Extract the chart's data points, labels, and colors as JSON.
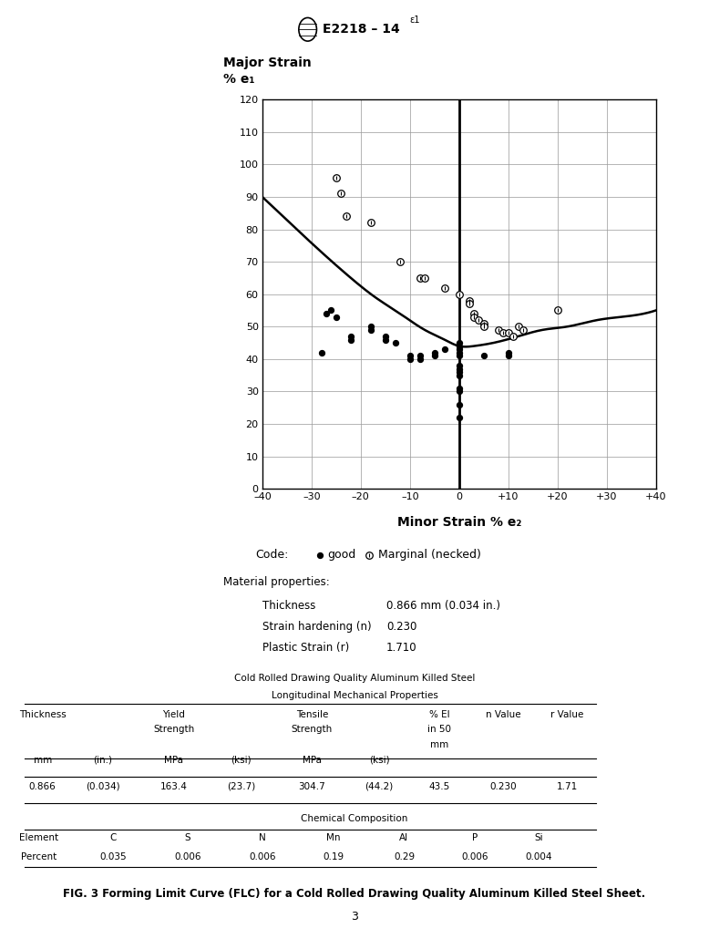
{
  "title_text": "E2218 – 14",
  "title_superscript": "ε1",
  "ylabel_line1": "Major Strain",
  "ylabel_line2": "% e₁",
  "xlabel": "Minor Strain % e₂",
  "xlim": [
    -40,
    40
  ],
  "ylim": [
    0,
    120
  ],
  "xticks": [
    -40,
    -30,
    -20,
    -10,
    0,
    10,
    20,
    30,
    40
  ],
  "xtick_labels": [
    "–40",
    "–30",
    "–20",
    "–10",
    "0",
    "+10",
    "+20",
    "+30",
    "+40"
  ],
  "yticks": [
    0,
    10,
    20,
    30,
    40,
    50,
    60,
    70,
    80,
    90,
    100,
    110,
    120
  ],
  "good_points": [
    [
      -27,
      54
    ],
    [
      -26,
      55
    ],
    [
      -25,
      53
    ],
    [
      -28,
      42
    ],
    [
      -22,
      47
    ],
    [
      -22,
      46
    ],
    [
      -18,
      50
    ],
    [
      -18,
      49
    ],
    [
      -15,
      47
    ],
    [
      -15,
      46
    ],
    [
      -13,
      45
    ],
    [
      -10,
      41
    ],
    [
      -10,
      40
    ],
    [
      -8,
      41
    ],
    [
      -8,
      40
    ],
    [
      -5,
      41
    ],
    [
      -5,
      42
    ],
    [
      -3,
      43
    ],
    [
      0,
      45
    ],
    [
      0,
      44
    ],
    [
      0,
      43
    ],
    [
      0,
      42
    ],
    [
      0,
      41
    ],
    [
      0,
      38
    ],
    [
      0,
      37
    ],
    [
      0,
      36
    ],
    [
      0,
      35
    ],
    [
      0,
      31
    ],
    [
      0,
      30
    ],
    [
      0,
      26
    ],
    [
      0,
      22
    ],
    [
      5,
      41
    ],
    [
      10,
      42
    ],
    [
      10,
      41
    ]
  ],
  "marginal_points": [
    [
      -25,
      96
    ],
    [
      -24,
      91
    ],
    [
      -23,
      84
    ],
    [
      -18,
      82
    ],
    [
      -12,
      70
    ],
    [
      -8,
      65
    ],
    [
      -7,
      65
    ],
    [
      -3,
      62
    ],
    [
      0,
      60
    ],
    [
      2,
      58
    ],
    [
      2,
      57
    ],
    [
      3,
      54
    ],
    [
      3,
      53
    ],
    [
      4,
      52
    ],
    [
      5,
      51
    ],
    [
      5,
      50
    ],
    [
      8,
      49
    ],
    [
      9,
      48
    ],
    [
      10,
      48
    ],
    [
      11,
      47
    ],
    [
      12,
      50
    ],
    [
      13,
      49
    ],
    [
      20,
      55
    ]
  ],
  "flc_curve_x": [
    -40,
    -33,
    -28,
    -22,
    -17,
    -12,
    -7,
    -3,
    0,
    3,
    7,
    12,
    17,
    22,
    28,
    33,
    40
  ],
  "flc_curve_y": [
    90,
    80,
    73,
    65,
    59,
    54,
    49,
    46,
    44,
    44,
    45,
    47,
    49,
    50,
    52,
    53,
    55
  ],
  "code_label": "Code:",
  "good_label": "good",
  "marginal_label": "Marginal (necked)",
  "mat_props_title": "Material properties:",
  "mat_props": [
    [
      "Thickness",
      "0.866 mm (0.034 in.)"
    ],
    [
      "Strain hardening (n)",
      "0.230"
    ],
    [
      "Plastic Strain (r)",
      "1.710"
    ]
  ],
  "table_title_line1": "Cold Rolled Drawing Quality Aluminum Killed Steel",
  "table_title_line2": "Longitudinal Mechanical Properties",
  "table_data": [
    "0.866",
    "(0.034)",
    "163.4",
    "(23.7)",
    "304.7",
    "(44.2)",
    "43.5",
    "0.230",
    "1.71"
  ],
  "chem_title": "Chemical Composition",
  "chem_elements": [
    "Element",
    "C",
    "S",
    "N",
    "Mn",
    "Al",
    "P",
    "Si"
  ],
  "chem_percents": [
    "Percent",
    "0.035",
    "0.006",
    "0.006",
    "0.19",
    "0.29",
    "0.006",
    "0.004"
  ],
  "fig_caption": "FIG. 3 Forming Limit Curve (FLC) for a Cold Rolled Drawing Quality Aluminum Killed Steel Sheet.",
  "page_number": "3",
  "bg_color": "#ffffff",
  "grid_color": "#999999",
  "curve_color": "#000000"
}
